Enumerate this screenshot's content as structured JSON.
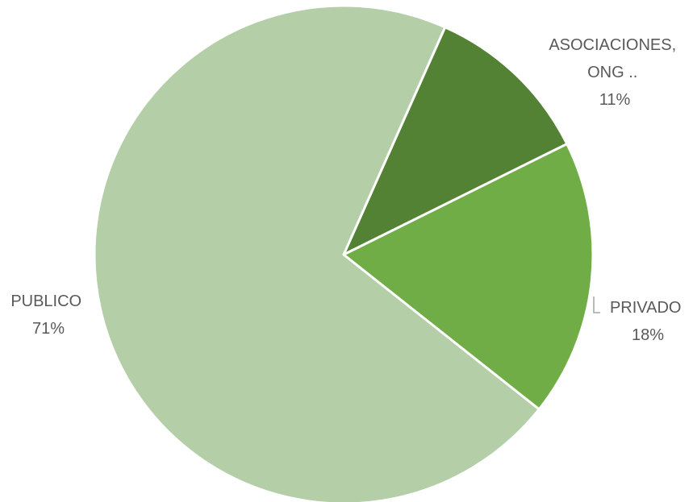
{
  "chart_data": {
    "type": "pie",
    "title": "",
    "slices": [
      {
        "name": "ASOCIACIONES, ONG ..",
        "label_lines": [
          "ASOCIACIONES,",
          "ONG .."
        ],
        "percent_label": "11%",
        "value": 11,
        "color": "#548235"
      },
      {
        "name": "PRIVADO",
        "label_lines": [
          "PRIVADO"
        ],
        "percent_label": "18%",
        "value": 18,
        "color": "#70ad47"
      },
      {
        "name": "PUBLICO",
        "label_lines": [
          "PUBLICO"
        ],
        "percent_label": "71%",
        "value": 71,
        "color": "#b4cfa8"
      }
    ],
    "start_angle_deg": 24,
    "direction": "clockwise",
    "legend": "none",
    "leader_line_color": "#a6a6a6"
  }
}
